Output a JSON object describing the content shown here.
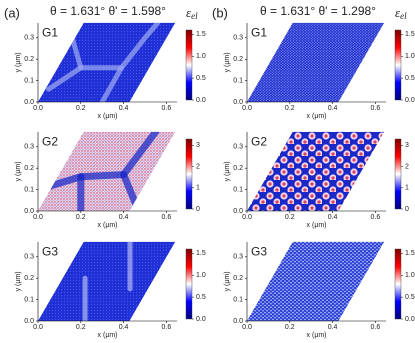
{
  "panel_labels": [
    "(a)",
    "(b)"
  ],
  "column_titles": [
    "θ = 1.631°  θ' = 1.598°",
    "θ = 1.631°  θ' = 1.298°"
  ],
  "colorbar_label": {
    "symbol": "ε",
    "subscript": "el"
  },
  "chart_data": [
    {
      "type": "heatmap",
      "title": "G1",
      "xlabel": "x (μm)",
      "ylabel": "y (μm)",
      "xlim": [
        0,
        0.65
      ],
      "ylim": [
        0,
        0.37
      ],
      "xticks": [
        {
          "value": 0,
          "label": "0.0"
        },
        0.2,
        0.4,
        0.6
      ],
      "yticks": [
        {
          "value": 0,
          "label": "0.0"
        },
        0.1,
        0.2,
        0.3
      ],
      "clim": [
        0,
        1.6
      ],
      "cticks": [
        {
          "value": 0,
          "label": "0.0"
        },
        0.5,
        {
          "value": 1,
          "label": "1.0"
        },
        1.5
      ]
    },
    {
      "type": "heatmap",
      "title": "G2",
      "xlabel": "x (μm)",
      "ylabel": "y (μm)",
      "xlim": [
        0,
        0.65
      ],
      "ylim": [
        0,
        0.37
      ],
      "xticks": [
        {
          "value": 0,
          "label": "0.0"
        },
        0.2,
        0.4,
        0.6
      ],
      "yticks": [
        {
          "value": 0,
          "label": "0.0"
        },
        0.1,
        0.2,
        0.3
      ],
      "clim": [
        0,
        3.3
      ],
      "cticks": [
        0,
        1,
        2,
        3
      ]
    },
    {
      "type": "heatmap",
      "title": "G3",
      "xlabel": "x (μm)",
      "ylabel": "y (μm)",
      "xlim": [
        0,
        0.65
      ],
      "ylim": [
        0,
        0.37
      ],
      "xticks": [
        {
          "value": 0,
          "label": "0.0"
        },
        0.2,
        0.4,
        0.6
      ],
      "yticks": [
        {
          "value": 0,
          "label": "0.0"
        },
        0.1,
        0.2,
        0.3
      ],
      "clim": [
        0,
        1.6
      ],
      "cticks": [
        {
          "value": 0,
          "label": "0.0"
        },
        0.5,
        {
          "value": 1,
          "label": "1.0"
        },
        1.5
      ]
    },
    {
      "type": "heatmap",
      "title": "G1",
      "xlabel": "x (μm)",
      "ylabel": "y (μm)",
      "xlim": [
        0,
        0.65
      ],
      "ylim": [
        0,
        0.37
      ],
      "xticks": [
        {
          "value": 0,
          "label": "0.0"
        },
        0.2,
        0.4,
        0.6
      ],
      "yticks": [
        {
          "value": 0,
          "label": "0.0"
        },
        0.1,
        0.2,
        0.3
      ],
      "clim": [
        0,
        1.6
      ],
      "cticks": [
        {
          "value": 0,
          "label": "0.0"
        },
        0.5,
        {
          "value": 1,
          "label": "1.0"
        },
        1.5
      ]
    },
    {
      "type": "heatmap",
      "title": "G2",
      "xlabel": "x (μm)",
      "ylabel": "y (μm)",
      "xlim": [
        0,
        0.65
      ],
      "ylim": [
        0,
        0.37
      ],
      "xticks": [
        {
          "value": 0,
          "label": "0.0"
        },
        0.2,
        0.4,
        0.6
      ],
      "yticks": [
        {
          "value": 0,
          "label": "0.0"
        },
        0.1,
        0.2,
        0.3
      ],
      "clim": [
        0,
        3.3
      ],
      "cticks": [
        0,
        1,
        2,
        3
      ]
    },
    {
      "type": "heatmap",
      "title": "G3",
      "xlabel": "x (μm)",
      "ylabel": "y (μm)",
      "xlim": [
        0,
        0.65
      ],
      "ylim": [
        0,
        0.37
      ],
      "xticks": [
        {
          "value": 0,
          "label": "0.0"
        },
        0.2,
        0.4,
        0.6
      ],
      "yticks": [
        {
          "value": 0,
          "label": "0.0"
        },
        0.1,
        0.2,
        0.3
      ],
      "clim": [
        0,
        1.6
      ],
      "cticks": [
        {
          "value": 0,
          "label": "0.0"
        },
        0.5,
        {
          "value": 1,
          "label": "1.0"
        },
        1.5
      ]
    }
  ]
}
